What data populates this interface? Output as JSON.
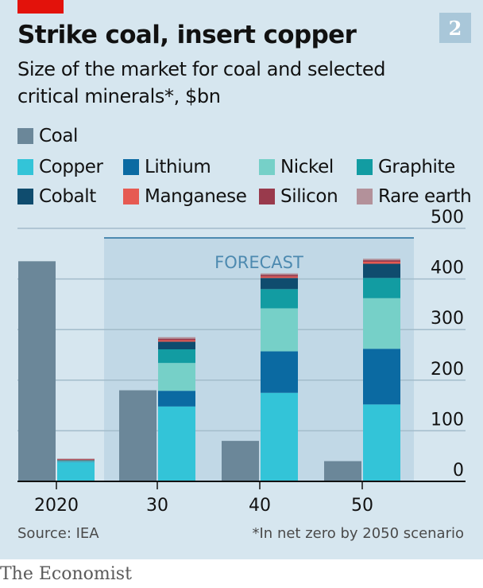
{
  "header": {
    "chart_number": "2",
    "title": "Strike coal, insert copper",
    "subtitle": "Size of the market for coal and selected critical minerals*, $bn"
  },
  "footer": {
    "source": "Source: IEA",
    "footnote": "*In net zero by 2050 scenario",
    "brand": "The Economist"
  },
  "chart_data": {
    "type": "bar",
    "stacked": true,
    "categories": [
      "2020",
      "30",
      "40",
      "50"
    ],
    "forecast_label": "FORECAST",
    "forecast_categories": [
      "30",
      "40",
      "50"
    ],
    "ylim": [
      0,
      500
    ],
    "yticks": [
      0,
      100,
      200,
      300,
      400,
      500
    ],
    "grid": true,
    "legend_position": "top",
    "coal": {
      "name": "Coal",
      "color": "#6b8799",
      "values": [
        435,
        180,
        80,
        40
      ]
    },
    "minerals": [
      {
        "name": "Copper",
        "color": "#33c4d8",
        "values": [
          38,
          148,
          175,
          152
        ]
      },
      {
        "name": "Lithium",
        "color": "#0b6aa2",
        "values": [
          1,
          31,
          82,
          110
        ]
      },
      {
        "name": "Nickel",
        "color": "#76d0c8",
        "values": [
          1,
          55,
          85,
          100
        ]
      },
      {
        "name": "Graphite",
        "color": "#129ca2",
        "values": [
          1,
          27,
          38,
          40
        ]
      },
      {
        "name": "Cobalt",
        "color": "#0f4c6e",
        "values": [
          1,
          15,
          22,
          28
        ]
      },
      {
        "name": "Manganese",
        "color": "#e65a52",
        "values": [
          1,
          3,
          3,
          4
        ]
      },
      {
        "name": "Silicon",
        "color": "#993a4c",
        "values": [
          1,
          3,
          3,
          3
        ]
      },
      {
        "name": "Rare earth",
        "color": "#b3919a",
        "values": [
          1,
          3,
          3,
          3
        ]
      }
    ]
  }
}
